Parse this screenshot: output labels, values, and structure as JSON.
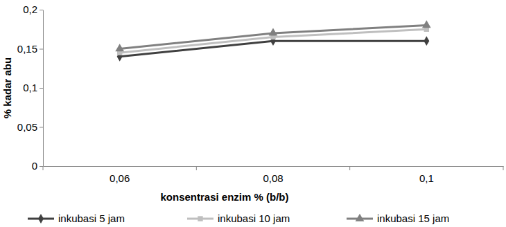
{
  "chart_data": {
    "type": "line",
    "x_label": "konsentrasi enzim % (b/b)",
    "y_label": "% kadar abu",
    "categories": [
      "0,06",
      "0,08",
      "0,1"
    ],
    "series": [
      {
        "name": "inkubasi 5 jam",
        "color": "#404040",
        "marker": "diamond",
        "values": [
          0.14,
          0.16,
          0.16
        ]
      },
      {
        "name": "inkubasi 10 jam",
        "color": "#bfbfbf",
        "marker": "square",
        "values": [
          0.145,
          0.165,
          0.175
        ]
      },
      {
        "name": "inkubasi 15 jam",
        "color": "#808080",
        "marker": "triangle",
        "values": [
          0.15,
          0.17,
          0.18
        ]
      }
    ],
    "ylim": [
      0,
      0.2
    ],
    "yticks": [
      0,
      {
        "value": 0.05,
        "label": "0,05"
      },
      {
        "value": 0.1,
        "label": "0,1"
      },
      {
        "value": 0.15,
        "label": "0,15"
      },
      {
        "value": 0.2,
        "label": "0,2"
      }
    ],
    "grid": false,
    "legend": "bottom"
  }
}
